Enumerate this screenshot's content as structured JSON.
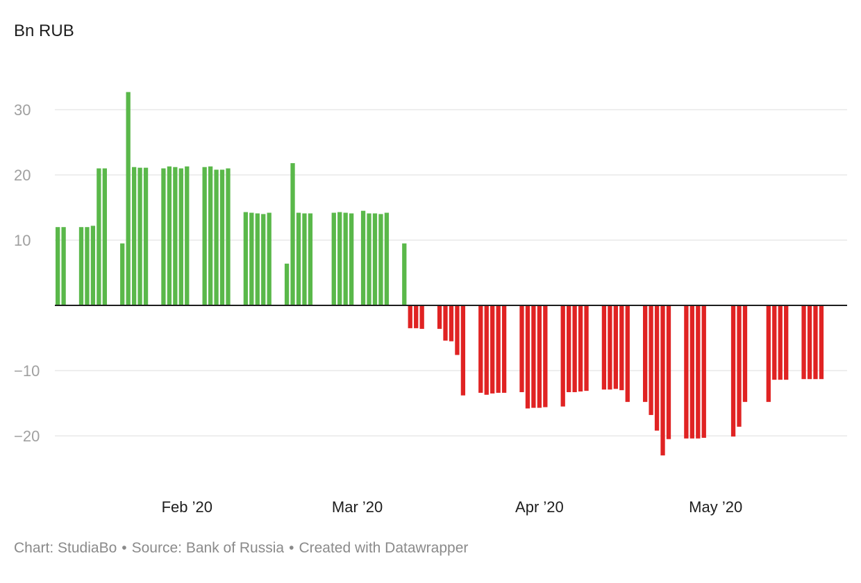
{
  "chart_data": {
    "type": "bar",
    "unit_label": "Bn RUB",
    "y_ticks": [
      30,
      20,
      10,
      -10,
      -20
    ],
    "y_tick_labels": [
      "30",
      "20",
      "10",
      "−10",
      "−20"
    ],
    "ylim": [
      -27,
      37
    ],
    "grid": true,
    "x_tick_labels": [
      {
        "label": "Feb ’20",
        "index": 22
      },
      {
        "label": "Mar ’20",
        "index": 51
      },
      {
        "label": "Apr ’20",
        "index": 82
      },
      {
        "label": "May ’20",
        "index": 112
      }
    ],
    "colors": {
      "positive": "#5ab84a",
      "negative": "#e02323"
    },
    "values": [
      12,
      12,
      null,
      null,
      12,
      12,
      12.2,
      21,
      21,
      null,
      null,
      9.5,
      32.7,
      21.2,
      21.1,
      21.1,
      null,
      null,
      21,
      21.3,
      21.2,
      21,
      21.3,
      null,
      null,
      21.2,
      21.3,
      20.8,
      20.8,
      21,
      null,
      null,
      14.3,
      14.2,
      14.1,
      14,
      14.2,
      null,
      null,
      6.4,
      21.8,
      14.2,
      14.1,
      14.1,
      null,
      null,
      null,
      14.2,
      14.3,
      14.2,
      14.1,
      null,
      14.5,
      14.1,
      14.1,
      14,
      14.2,
      null,
      null,
      9.5,
      -3.5,
      -3.5,
      -3.6,
      null,
      null,
      -3.6,
      -5.4,
      -5.5,
      -7.6,
      -13.8,
      null,
      null,
      -13.4,
      -13.7,
      -13.5,
      -13.4,
      -13.4,
      null,
      null,
      -13.3,
      -15.8,
      -15.7,
      -15.7,
      -15.6,
      null,
      null,
      -15.5,
      -13.3,
      -13.3,
      -13.2,
      -13.1,
      null,
      null,
      -12.9,
      -12.9,
      -12.8,
      -13,
      -14.8,
      null,
      null,
      -14.8,
      -16.8,
      -19.2,
      -23,
      -20.5,
      null,
      null,
      -20.4,
      -20.4,
      -20.4,
      -20.3,
      null,
      null,
      null,
      null,
      -20.1,
      -18.6,
      -14.8,
      null,
      null,
      null,
      -14.8,
      -11.4,
      -11.4,
      -11.4,
      null,
      null,
      -11.3,
      -11.3,
      -11.3,
      -11.3
    ]
  },
  "footer": {
    "chart_by": "Chart: StudiaBo",
    "source": "Source: Bank of Russia",
    "created": "Created with Datawrapper",
    "separator": "•"
  }
}
